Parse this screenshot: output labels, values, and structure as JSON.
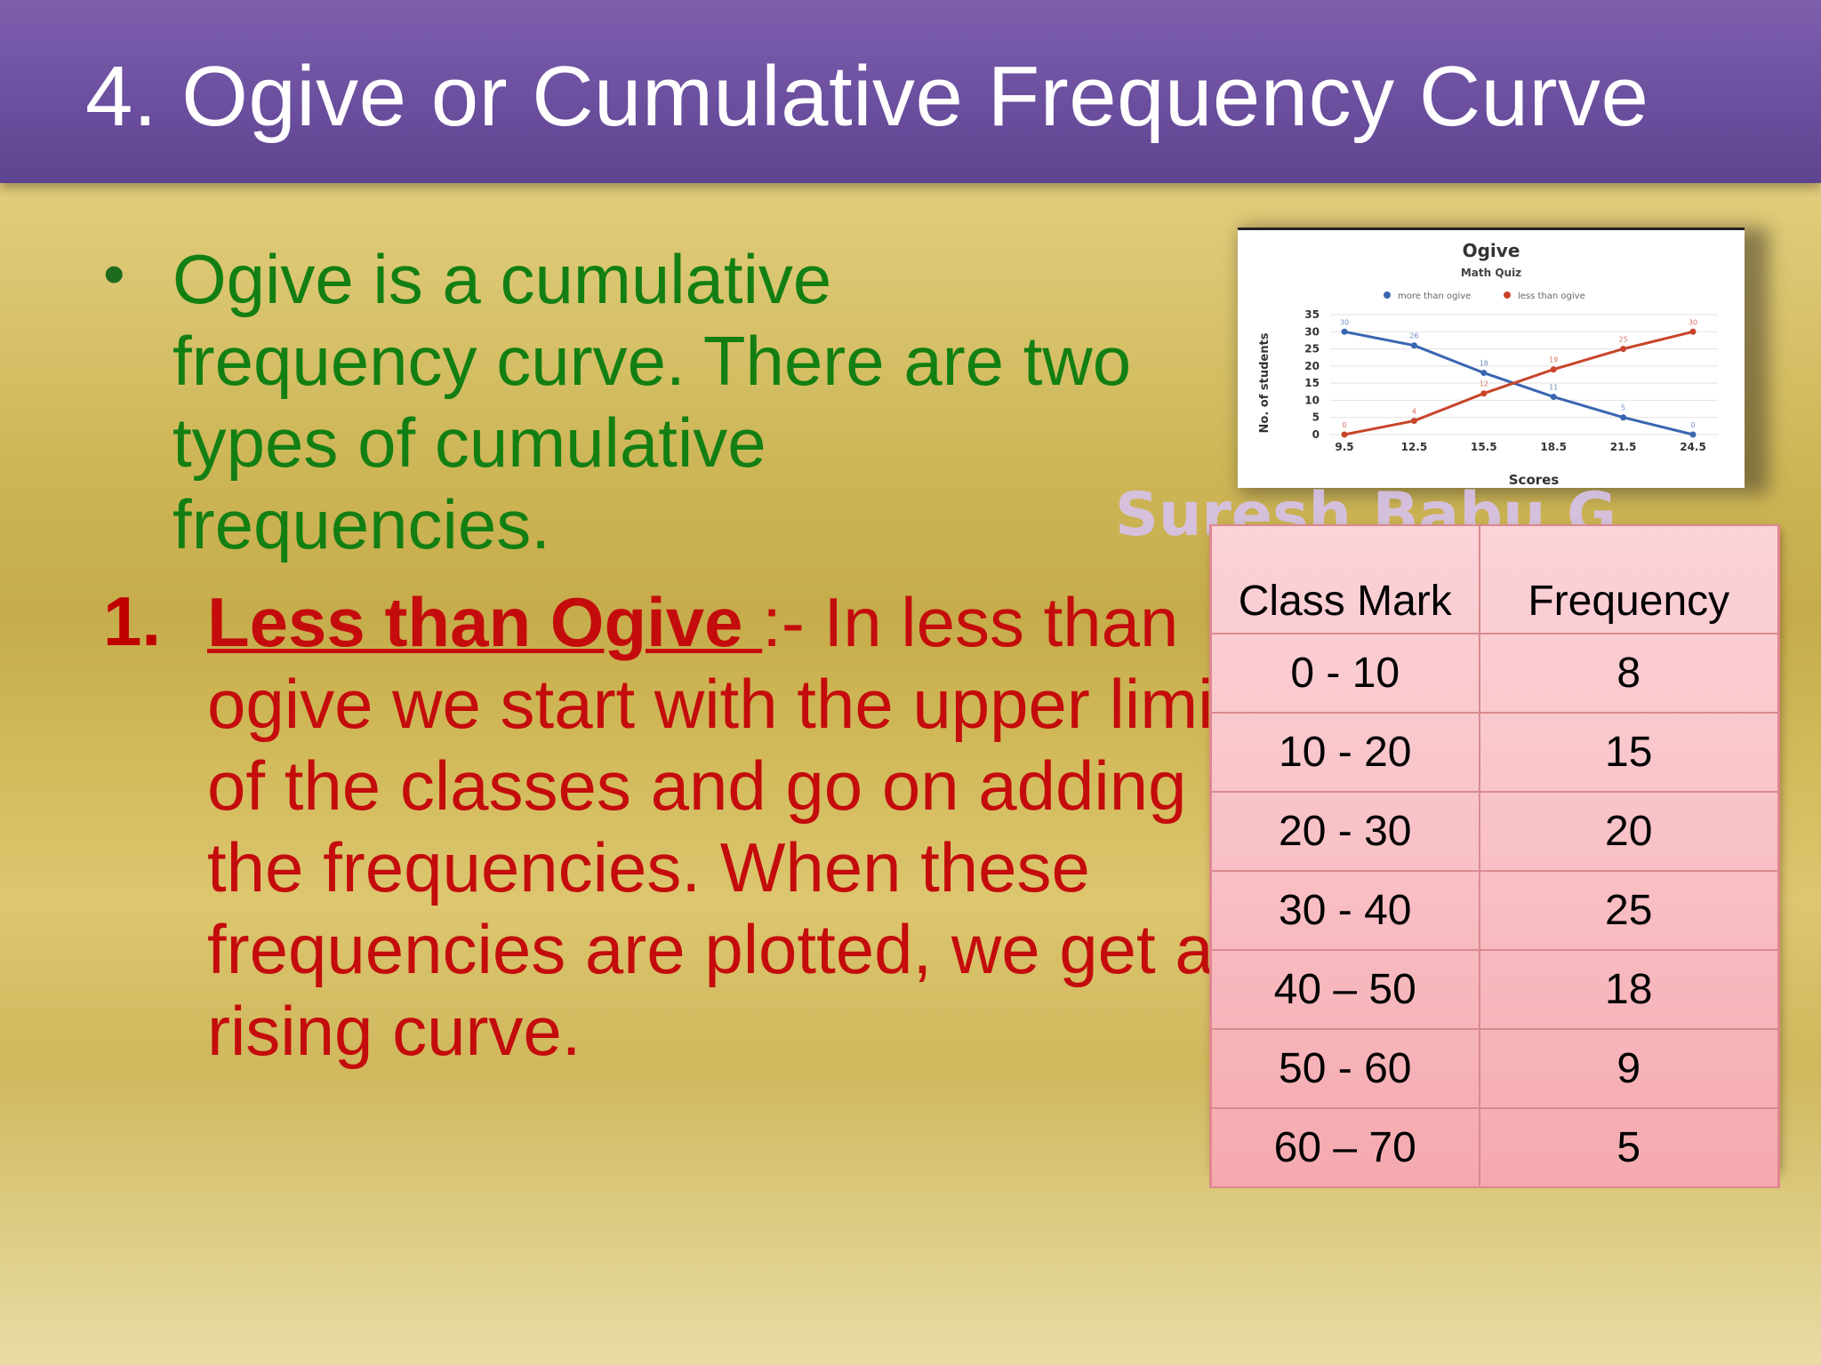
{
  "slide": {
    "title": "4. Ogive or Cumulative Frequency Curve",
    "bullet": {
      "marker": "•",
      "text": "Ogive is a cumulative frequency curve. There are two types of cumulative frequencies."
    },
    "numbered": {
      "marker": "1.",
      "heading": "Less than Ogive ",
      "body": ":- In less than ogive we  start with the upper limits of the classes and go on adding the frequencies. When these frequencies are plotted, we get a rising curve."
    },
    "watermark": "Suresh Babu G"
  },
  "table": {
    "headers": [
      "Class Mark",
      "Frequency"
    ],
    "rows": [
      [
        "0 - 10",
        "8"
      ],
      [
        "10 - 20",
        "15"
      ],
      [
        "20 - 30",
        "20"
      ],
      [
        "30 - 40",
        "25"
      ],
      [
        "40 – 50",
        "18"
      ],
      [
        "50 - 60",
        "9"
      ],
      [
        "60 – 70",
        "5"
      ]
    ]
  },
  "colors": {
    "title_bar": "#6c4f9f",
    "bullet_text": "#137f13",
    "numbered_text": "#c40c0c",
    "more_than_series": "#3a66b0",
    "less_than_series": "#c8452a"
  },
  "chart_data": {
    "type": "line",
    "title": "Ogive",
    "subtitle": "Math Quiz",
    "xlabel": "Scores",
    "ylabel": "No. of students",
    "x": [
      9.5,
      12.5,
      15.5,
      18.5,
      21.5,
      24.5
    ],
    "x_tick_labels": [
      "9.5",
      "12.5",
      "15.5",
      "18.5",
      "21.5",
      "24.5"
    ],
    "y_ticks": [
      0,
      5,
      10,
      15,
      20,
      25,
      30,
      35
    ],
    "ylim": [
      0,
      35
    ],
    "grid": true,
    "legend_position": "top",
    "series": [
      {
        "name": "more than ogive",
        "values": [
          30,
          26,
          18,
          11,
          5,
          0
        ],
        "color": "#3a66b0"
      },
      {
        "name": "less than ogive",
        "values": [
          0,
          4,
          12,
          19,
          25,
          30
        ],
        "color": "#c8452a"
      }
    ]
  }
}
